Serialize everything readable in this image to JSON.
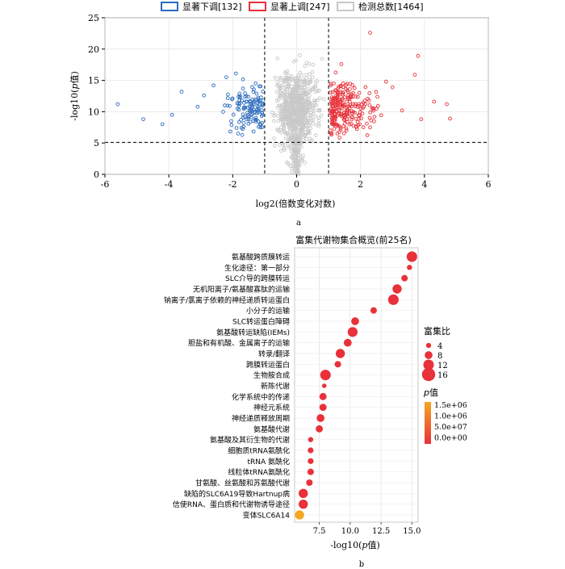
{
  "figure": {
    "label_a": "a",
    "label_b": "b"
  },
  "chart_data": [
    {
      "type": "scatter",
      "name": "volcano",
      "xlabel": "log2(倍数变化对数)",
      "ylabel_pre": "-log10(",
      "ylabel_p": "p",
      "ylabel_post": "值)",
      "xlim": [
        -6,
        6
      ],
      "ylim": [
        0,
        25
      ],
      "xticks": [
        -6,
        -4,
        -2,
        0,
        2,
        4,
        6
      ],
      "yticks": [
        0,
        5,
        10,
        15,
        20,
        25
      ],
      "grid": true,
      "legend_position": "top",
      "thresholds": {
        "x": [
          -1,
          1
        ],
        "y": 5.1
      },
      "series": [
        {
          "name": "显著下调[132]",
          "color": "#2b6bbd"
        },
        {
          "name": "显著上调[247]",
          "color": "#e8313a"
        },
        {
          "name": "检测总数[1464]",
          "color": "#c8c8c8"
        }
      ],
      "sample_points": {
        "down": [
          [
            -5.6,
            11.2
          ],
          [
            -4.8,
            8.8
          ],
          [
            -4.2,
            8.0
          ],
          [
            -3.9,
            9.5
          ],
          [
            -3.6,
            13.2
          ],
          [
            -3.1,
            10.8
          ],
          [
            -2.9,
            12.6
          ],
          [
            -2.6,
            14.2
          ],
          [
            -2.2,
            15.5
          ],
          [
            -1.9,
            16.1
          ],
          [
            -1.5,
            9.2
          ],
          [
            -1.2,
            12.0
          ]
        ],
        "up": [
          [
            1.1,
            9.0
          ],
          [
            1.4,
            17.6
          ],
          [
            2.3,
            22.6
          ],
          [
            2.8,
            14.8
          ],
          [
            3.0,
            13.9
          ],
          [
            3.3,
            10.2
          ],
          [
            3.7,
            15.9
          ],
          [
            3.8,
            18.9
          ],
          [
            3.9,
            8.8
          ],
          [
            4.3,
            11.6
          ],
          [
            4.7,
            11.2
          ],
          [
            4.8,
            8.9
          ]
        ],
        "all": [
          [
            -0.6,
            18.5
          ],
          [
            0.1,
            19.0
          ],
          [
            0.0,
            12.0
          ],
          [
            0.2,
            3.0
          ],
          [
            -0.3,
            6.5
          ]
        ]
      }
    },
    {
      "type": "scatter",
      "name": "enrichment-dotplot",
      "title": "富集代谢物集合概览(前25名)",
      "xlabel_pre": "-log10(",
      "xlabel_p": "p",
      "xlabel_post": "值)",
      "xlim": [
        5.5,
        15.5
      ],
      "xticks": [
        7.5,
        10.0,
        12.5,
        15.0
      ],
      "categories": [
        "氨基酸跨质膜转运",
        "生化途径：第一部分",
        "SLC介导的跨膜转运",
        "无机阳离子/氨基酸寡肽的运输",
        "钠离子/氯离子依赖的神经递质转运蛋白",
        "小分子的运输",
        "SLC转运蛋白障碍",
        "氨基酸转运缺陷(IEMs)",
        "胆盐和有机酸、金属离子的运输",
        "转录/翻译",
        "跨膜转运蛋白",
        "生物胺合成",
        "新陈代谢",
        "化学系统中的传递",
        "神经元系统",
        "神经递质释放周期",
        "氨基酸代谢",
        "氨基酸及其衍生物的代谢",
        "细胞质tRNA氨酰化",
        "tRNA 氨酰化",
        "线粒体tRNA氨酰化",
        "甘氨酸、丝氨酸和苏氨酸代谢",
        "缺陷的SLC6A19导致Hartnup病",
        "信使RNA、蛋白质和代谢物诱导途径",
        "变体SLC6A14"
      ],
      "x": [
        15.0,
        14.8,
        14.4,
        13.8,
        13.5,
        11.9,
        10.4,
        10.2,
        9.8,
        9.2,
        9.0,
        8.0,
        7.9,
        7.8,
        7.8,
        7.6,
        7.5,
        6.8,
        6.8,
        6.8,
        6.8,
        6.7,
        6.2,
        6.2,
        5.9
      ],
      "size": [
        12,
        4,
        6,
        10,
        12,
        6,
        8,
        11,
        8,
        10,
        6,
        12,
        3,
        7,
        7,
        8,
        7,
        4,
        5,
        5,
        6,
        6,
        10,
        10,
        10
      ],
      "pvalue_color": [
        0,
        0,
        0,
        0,
        0,
        0,
        0,
        0,
        0,
        0,
        0,
        0,
        0,
        0,
        0,
        0,
        0,
        0,
        0,
        0,
        0,
        0,
        0,
        0,
        1500000
      ],
      "size_legend": {
        "title": "富集比",
        "values": [
          4,
          8,
          12,
          16
        ]
      },
      "color_legend": {
        "title_p": "p",
        "title_post": "值",
        "labels": [
          "1.5e+06",
          "1.0e+06",
          "5.0e+07",
          "0.0e+00"
        ],
        "colors": [
          "#e8313a",
          "#f5a623"
        ]
      }
    }
  ]
}
